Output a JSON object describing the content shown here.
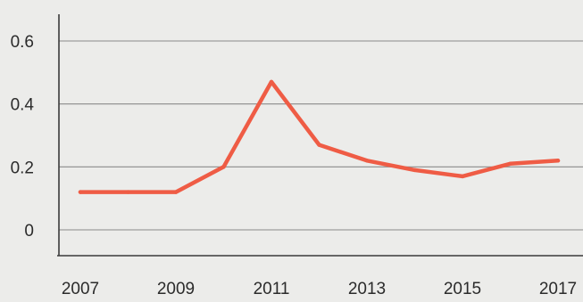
{
  "chart_data": {
    "type": "line",
    "x": [
      2007,
      2008,
      2009,
      2010,
      2011,
      2012,
      2013,
      2014,
      2015,
      2016,
      2017
    ],
    "series": [
      {
        "values": [
          0.12,
          0.12,
          0.12,
          0.2,
          0.47,
          0.27,
          0.22,
          0.19,
          0.17,
          0.21,
          0.22
        ]
      }
    ],
    "x_ticks": [
      "2007",
      "2009",
      "2011",
      "2013",
      "2015",
      "2017"
    ],
    "y_ticks": [
      "0",
      "0.2",
      "0.4",
      "0.6"
    ],
    "xlim": [
      2007,
      2017
    ],
    "ylim": [
      0,
      0.6
    ],
    "grid": true,
    "colors": {
      "line": "#ef5c45",
      "grid": "#8a8a8a",
      "axis": "#3a3a3a",
      "background": "#ececea"
    }
  }
}
